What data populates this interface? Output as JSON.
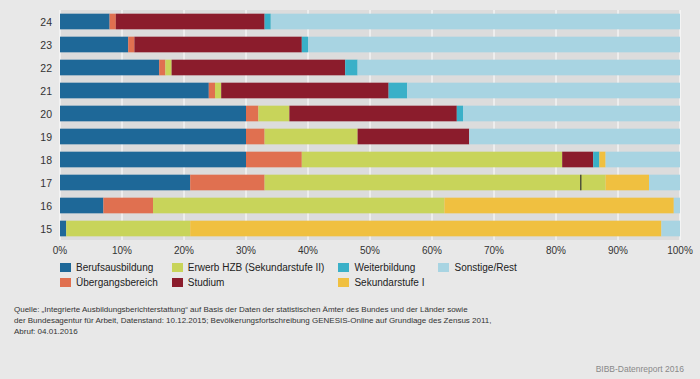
{
  "chart_data": {
    "type": "bar",
    "orientation": "horizontal",
    "stacked": true,
    "categories": [
      15,
      16,
      17,
      18,
      19,
      20,
      21,
      22,
      23,
      24
    ],
    "series": [
      {
        "name": "Berufsausbildung",
        "color": "#1e6898",
        "values": [
          1,
          7,
          21,
          30,
          30,
          30,
          24,
          16,
          11,
          8
        ]
      },
      {
        "name": "Übergangsbereich",
        "color": "#e07050",
        "values": [
          0,
          8,
          12,
          9,
          3,
          2,
          1,
          1,
          1,
          1
        ]
      },
      {
        "name": "Erwerb HZB (Sekundarstufe II)",
        "color": "#c8d45a",
        "values": [
          20,
          47,
          55,
          42,
          15,
          5,
          1,
          1,
          0,
          0
        ]
      },
      {
        "name": "Studium",
        "color": "#8b1c2c",
        "values": [
          0,
          0,
          0,
          5,
          18,
          27,
          27,
          28,
          27,
          24
        ]
      },
      {
        "name": "Weiterbildung",
        "color": "#3ab0c8",
        "values": [
          0,
          0,
          0,
          1,
          0,
          1,
          3,
          2,
          1,
          1
        ]
      },
      {
        "name": "Sekundarstufe I",
        "color": "#f0c040",
        "values": [
          76,
          37,
          7,
          1,
          0,
          0,
          0,
          0,
          0,
          0
        ]
      },
      {
        "name": "Sonstige/Rest",
        "color": "#a8d4e2",
        "values": [
          3,
          1,
          5,
          12,
          34,
          35,
          44,
          52,
          60,
          66
        ]
      }
    ],
    "xlim": [
      0,
      100
    ],
    "xticks": [
      {
        "value": 0,
        "label": "0%"
      },
      {
        "value": 10,
        "label": "10%"
      },
      {
        "value": 20,
        "label": "20%"
      },
      {
        "value": 30,
        "label": "30%"
      },
      {
        "value": 40,
        "label": "40%"
      },
      {
        "value": 50,
        "label": "50%"
      },
      {
        "value": 60,
        "label": "60%"
      },
      {
        "value": 70,
        "label": "70%"
      },
      {
        "value": 80,
        "label": "80%"
      },
      {
        "value": 90,
        "label": "90%"
      },
      {
        "value": 100,
        "label": "100%"
      }
    ],
    "grid": true,
    "legend": "bottom",
    "annotations": [
      {
        "category": 17,
        "value": 84
      }
    ],
    "source": "Quelle: „Integrierte Ausbildungsberichterstattung“ auf Basis der Daten der statistischen Ämter des Bundes und der Länder sowie\nder Bundesagentur für Arbeit, Datenstand: 10.12.2015; Bevölkerungsfortschreibung GENESIS-Online auf Grundlage des Zensus 2011,\nAbruf: 04.01.2016",
    "credit": "BIBB-Datenreport 2016"
  }
}
